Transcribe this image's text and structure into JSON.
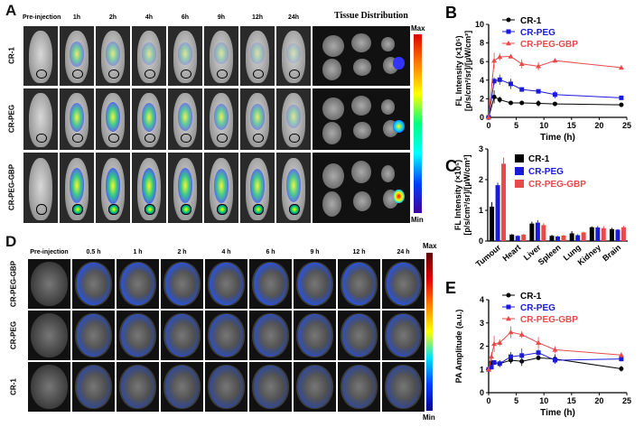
{
  "panels": {
    "a": "A",
    "b": "B",
    "c": "C",
    "d": "D",
    "e": "E"
  },
  "panel_a": {
    "timepoints": [
      "Pre-injection",
      "1h",
      "2h",
      "4h",
      "6h",
      "9h",
      "12h",
      "24h"
    ],
    "tissue_title": "Tissue Distribution",
    "rows": [
      "CR-1",
      "CR-PEG",
      "CR-PEG-GBP"
    ],
    "signal": [
      [
        0,
        0.5,
        0.4,
        0.3,
        0.3,
        0.25,
        0.2,
        0.15
      ],
      [
        0,
        0.7,
        0.75,
        0.7,
        0.6,
        0.55,
        0.5,
        0.3
      ],
      [
        0,
        0.8,
        0.85,
        0.85,
        0.8,
        0.75,
        0.75,
        0.7
      ]
    ],
    "colorbar": {
      "max": "Max",
      "min": "Min"
    }
  },
  "panel_d": {
    "timepoints": [
      "Pre-injection",
      "0.5 h",
      "1 h",
      "2 h",
      "4 h",
      "6 h",
      "9 h",
      "12 h",
      "24 h"
    ],
    "rows": [
      "CR-PEG-GBP",
      "CR-PEG",
      "CR-1"
    ],
    "colorbar": {
      "max": "Max",
      "min": "Min"
    }
  },
  "colors": {
    "CR-1": "#000000",
    "CR-PEG": "#1a1adc",
    "CR-PEG-GBP": "#e84a4a"
  },
  "chart_data": [
    {
      "id": "B",
      "type": "line",
      "xlabel": "Time (h)",
      "ylabel": "FL Intensity (×10⁵)",
      "ylabel2": "[p/s/cm²/sr]/[µW/cm²]",
      "xlim": [
        0,
        25
      ],
      "ylim": [
        0,
        10
      ],
      "xticks": [
        0,
        5,
        10,
        15,
        20,
        25
      ],
      "yticks": [
        0,
        2,
        4,
        6,
        8,
        10
      ],
      "x": [
        0,
        1,
        2,
        4,
        6,
        9,
        12,
        24
      ],
      "series": [
        {
          "name": "CR-1",
          "values": [
            0,
            2.2,
            1.9,
            1.55,
            1.55,
            1.5,
            1.45,
            1.35
          ],
          "err": [
            0,
            0.7,
            0.35,
            0.15,
            0.15,
            0.35,
            0.15,
            0.1
          ],
          "marker": "circle"
        },
        {
          "name": "CR-PEG",
          "values": [
            0,
            3.9,
            4.05,
            3.6,
            3.0,
            2.8,
            2.45,
            2.1
          ],
          "err": [
            0,
            0.4,
            0.55,
            0.55,
            0.2,
            0.15,
            0.4,
            0.15
          ],
          "marker": "square"
        },
        {
          "name": "CR-PEG-GBP",
          "values": [
            0,
            6.1,
            6.5,
            6.55,
            5.75,
            5.5,
            6.1,
            5.35
          ],
          "err": [
            0,
            0.85,
            0.4,
            0.1,
            0.5,
            0.45,
            0.1,
            0.1
          ],
          "marker": "triangle"
        }
      ],
      "legend": "top-left"
    },
    {
      "id": "C",
      "type": "bar",
      "ylabel": "FL Intensity (×10⁵)",
      "ylabel2": "[p/s/cm²/sr]/[µW/cm²]",
      "ylim": [
        0,
        3
      ],
      "yticks": [
        0,
        1,
        2,
        3
      ],
      "categories": [
        "Tumour",
        "Heart",
        "Liver",
        "Spleen",
        "Lung",
        "Kidney",
        "Brain"
      ],
      "series": [
        {
          "name": "CR-1",
          "values": [
            1.12,
            0.21,
            0.57,
            0.17,
            0.25,
            0.45,
            0.39
          ],
          "err": [
            0.15,
            0.02,
            0.06,
            0.03,
            0.07,
            0.03,
            0.04
          ]
        },
        {
          "name": "CR-PEG",
          "values": [
            1.82,
            0.17,
            0.6,
            0.15,
            0.19,
            0.44,
            0.37
          ],
          "err": [
            0.08,
            0.02,
            0.08,
            0.02,
            0.03,
            0.05,
            0.02
          ]
        },
        {
          "name": "CR-PEG-GBP",
          "values": [
            2.52,
            0.21,
            0.52,
            0.18,
            0.28,
            0.42,
            0.45
          ],
          "err": [
            0.2,
            0.02,
            0.06,
            0.02,
            0.02,
            0.06,
            0.05
          ]
        }
      ],
      "legend": "top-right"
    },
    {
      "id": "E",
      "type": "line",
      "xlabel": "Time (h)",
      "ylabel": "PA Amplitude (a.u.)",
      "xlim": [
        0,
        25
      ],
      "ylim": [
        0,
        4
      ],
      "xticks": [
        0,
        5,
        10,
        15,
        20,
        25
      ],
      "yticks": [
        0,
        1,
        2,
        3,
        4
      ],
      "x": [
        0,
        0.5,
        1,
        2,
        4,
        6,
        9,
        12,
        24
      ],
      "series": [
        {
          "name": "CR-1",
          "values": [
            1,
            1.3,
            1.3,
            1.25,
            1.4,
            1.35,
            1.5,
            1.45,
            1.03
          ],
          "err": [
            0.05,
            0.1,
            0.1,
            0.15,
            0.15,
            0.2,
            0.05,
            0.2,
            0.12
          ],
          "marker": "circle"
        },
        {
          "name": "CR-PEG",
          "values": [
            1,
            1.1,
            1.3,
            1.25,
            1.55,
            1.6,
            1.72,
            1.4,
            1.45
          ],
          "err": [
            0.05,
            0.1,
            0.1,
            0.1,
            0.2,
            0.3,
            0.15,
            0.15,
            0.1
          ],
          "marker": "square"
        },
        {
          "name": "CR-PEG-GBP",
          "values": [
            1,
            1.55,
            2.1,
            2.15,
            2.6,
            2.5,
            2.15,
            1.85,
            1.62
          ],
          "err": [
            0.05,
            0.2,
            0.35,
            0.15,
            0.25,
            0.15,
            0.25,
            0.15,
            0.12
          ],
          "marker": "triangle"
        }
      ],
      "legend": "top-left"
    }
  ]
}
